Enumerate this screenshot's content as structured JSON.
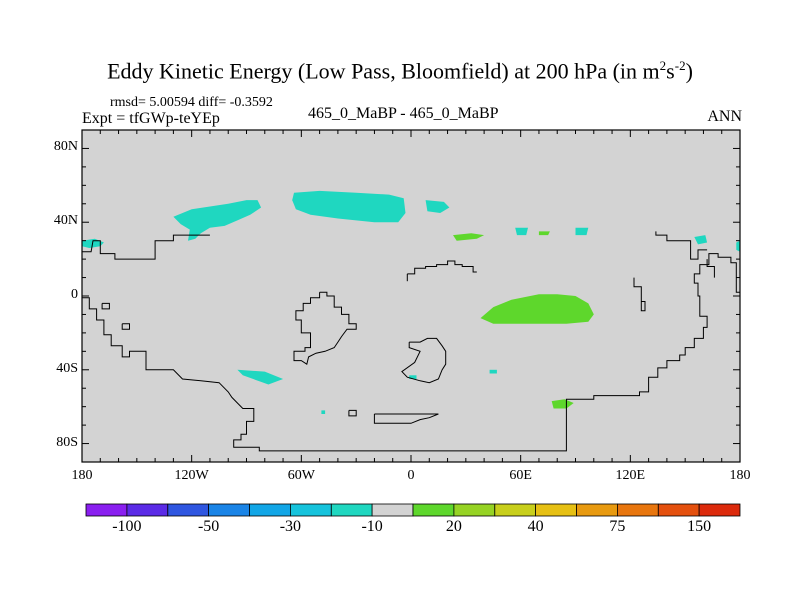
{
  "title_main": "Eddy Kinetic Energy (Low Pass, Bloomfield) at 200 hPa (in m",
  "title_sup1": "2",
  "title_s": "s",
  "title_sup2": "-2",
  "title_end": ")",
  "stats": "rmsd= 5.00594  diff= -0.3592",
  "expt": "Expt = tfGWp-teYEp",
  "cases": "465_0_MaBP - 465_0_MaBP",
  "season": "ANN",
  "chart_data": {
    "type": "heatmap",
    "title": "Eddy Kinetic Energy (Low Pass, Bloomfield) at 200 hPa (in m2s-2)",
    "x_ticks": [
      {
        "v": -180,
        "label": "180"
      },
      {
        "v": -120,
        "label": "120W"
      },
      {
        "v": -60,
        "label": "60W"
      },
      {
        "v": 0,
        "label": "0"
      },
      {
        "v": 60,
        "label": "60E"
      },
      {
        "v": 120,
        "label": "120E"
      },
      {
        "v": 180,
        "label": "180"
      }
    ],
    "y_ticks": [
      {
        "v": 80,
        "label": "80N"
      },
      {
        "v": 40,
        "label": "40N"
      },
      {
        "v": 0,
        "label": "0"
      },
      {
        "v": -40,
        "label": "40S"
      },
      {
        "v": -80,
        "label": "80S"
      }
    ],
    "xlim": [
      -180,
      180
    ],
    "ylim": [
      -90,
      90
    ],
    "background_color": "#d3d3d3",
    "colorbar": {
      "colors": [
        "#8a1ff0",
        "#5b2be6",
        "#2f56e0",
        "#1a84e6",
        "#12a6e6",
        "#16c3dc",
        "#1fd7c0",
        "#d3d3d3",
        "#5ed72c",
        "#96d324",
        "#c8cf1c",
        "#e6c014",
        "#e89a10",
        "#e8760e",
        "#e4500e",
        "#dc2a0c"
      ],
      "labels": [
        {
          "after": 1,
          "text": "-100"
        },
        {
          "after": 3,
          "text": "-50"
        },
        {
          "after": 5,
          "text": "-30"
        },
        {
          "after": 7,
          "text": "-10"
        },
        {
          "after": 9,
          "text": "20"
        },
        {
          "after": 11,
          "text": "40"
        },
        {
          "after": 13,
          "text": "75"
        },
        {
          "after": 15,
          "text": "150"
        }
      ]
    },
    "regions": [
      {
        "name": "n-pacific-negative",
        "color": "#1fd7c0",
        "pts": [
          [
            -130,
            43
          ],
          [
            -120,
            47
          ],
          [
            -100,
            50
          ],
          [
            -90,
            52
          ],
          [
            -84,
            52
          ],
          [
            -82,
            48
          ],
          [
            -88,
            44
          ],
          [
            -95,
            41
          ],
          [
            -102,
            38
          ],
          [
            -110,
            37
          ],
          [
            -115,
            34
          ],
          [
            -118,
            31
          ],
          [
            -122,
            30
          ],
          [
            -121,
            36
          ],
          [
            -126,
            39
          ]
        ]
      },
      {
        "name": "n-atlantic-negative",
        "color": "#1fd7c0",
        "pts": [
          [
            -64,
            56
          ],
          [
            -50,
            57
          ],
          [
            -30,
            56
          ],
          [
            -12,
            55
          ],
          [
            -4,
            53
          ],
          [
            -3,
            45
          ],
          [
            -7,
            40
          ],
          [
            -20,
            40
          ],
          [
            -40,
            42
          ],
          [
            -55,
            44
          ],
          [
            -63,
            47
          ],
          [
            -65,
            52
          ]
        ]
      },
      {
        "name": "w-pacific-patch",
        "color": "#1fd7c0",
        "pts": [
          [
            -180,
            30
          ],
          [
            -173,
            31
          ],
          [
            -168,
            29
          ],
          [
            -170,
            27
          ],
          [
            -176,
            26
          ],
          [
            -180,
            27
          ]
        ]
      },
      {
        "name": "europe-patch",
        "color": "#1fd7c0",
        "pts": [
          [
            8,
            52
          ],
          [
            18,
            51
          ],
          [
            21,
            48
          ],
          [
            16,
            45
          ],
          [
            9,
            46
          ]
        ]
      },
      {
        "name": "asia-patch",
        "color": "#1fd7c0",
        "pts": [
          [
            57,
            37
          ],
          [
            64,
            37
          ],
          [
            63,
            33
          ],
          [
            58,
            33
          ]
        ]
      },
      {
        "name": "asia-patch-2",
        "color": "#1fd7c0",
        "pts": [
          [
            90,
            37
          ],
          [
            97,
            37
          ],
          [
            96,
            33
          ],
          [
            90,
            33
          ]
        ]
      },
      {
        "name": "w-pacific-edge",
        "color": "#1fd7c0",
        "pts": [
          [
            155,
            32
          ],
          [
            161,
            33
          ],
          [
            162,
            29
          ],
          [
            157,
            28
          ]
        ]
      },
      {
        "name": "dateline-edge",
        "color": "#1fd7c0",
        "pts": [
          [
            178,
            29
          ],
          [
            180,
            30
          ],
          [
            180,
            24
          ],
          [
            178,
            25
          ]
        ]
      },
      {
        "name": "s-atlantic-patch",
        "color": "#1fd7c0",
        "pts": [
          [
            -95,
            -40
          ],
          [
            -80,
            -41
          ],
          [
            -70,
            -45
          ],
          [
            -78,
            -48
          ],
          [
            -92,
            -43
          ]
        ]
      },
      {
        "name": "tiny-patch-a",
        "color": "#1fd7c0",
        "pts": [
          [
            -1,
            -43
          ],
          [
            3,
            -43
          ],
          [
            3,
            -45
          ],
          [
            -1,
            -45
          ]
        ]
      },
      {
        "name": "tiny-patch-b",
        "color": "#1fd7c0",
        "pts": [
          [
            -49,
            -62
          ],
          [
            -47,
            -62
          ],
          [
            -47,
            -64
          ],
          [
            -49,
            -64
          ]
        ]
      },
      {
        "name": "tiny-patch-c",
        "color": "#1fd7c0",
        "pts": [
          [
            43,
            -40
          ],
          [
            47,
            -40
          ],
          [
            47,
            -42
          ],
          [
            43,
            -42
          ]
        ]
      },
      {
        "name": "indian-positive",
        "color": "#5ed72c",
        "pts": [
          [
            38,
            -12
          ],
          [
            45,
            -6
          ],
          [
            55,
            -2
          ],
          [
            70,
            1
          ],
          [
            80,
            1
          ],
          [
            90,
            0
          ],
          [
            97,
            -4
          ],
          [
            100,
            -10
          ],
          [
            97,
            -14
          ],
          [
            85,
            -15
          ],
          [
            70,
            -15
          ],
          [
            55,
            -15
          ],
          [
            45,
            -15
          ]
        ]
      },
      {
        "name": "s-ocean-positive",
        "color": "#5ed72c",
        "pts": [
          [
            77,
            -57
          ],
          [
            84,
            -56
          ],
          [
            89,
            -58
          ],
          [
            85,
            -61
          ],
          [
            78,
            -61
          ]
        ]
      },
      {
        "name": "mideast-positive",
        "color": "#5ed72c",
        "pts": [
          [
            23,
            33
          ],
          [
            33,
            34
          ],
          [
            40,
            33
          ],
          [
            36,
            31
          ],
          [
            25,
            30
          ]
        ]
      },
      {
        "name": "china-positive",
        "color": "#5ed72c",
        "pts": [
          [
            70,
            35
          ],
          [
            76,
            35
          ],
          [
            75,
            33
          ],
          [
            70,
            33
          ]
        ]
      }
    ],
    "coastlines": [
      [
        [
          -180,
          24
        ],
        [
          -175,
          24
        ],
        [
          -174,
          30
        ],
        [
          -170,
          30
        ],
        [
          -170,
          23
        ],
        [
          -162,
          23
        ],
        [
          -162,
          20
        ],
        [
          -140,
          20
        ],
        [
          -140,
          30
        ],
        [
          -130,
          30
        ],
        [
          -130,
          33
        ],
        [
          -110,
          33
        ]
      ],
      [
        [
          -180,
          -1
        ],
        [
          -176,
          -1
        ],
        [
          -176,
          -7
        ],
        [
          -172,
          -7
        ],
        [
          -172,
          -13
        ],
        [
          -168,
          -13
        ],
        [
          -168,
          -21
        ],
        [
          -164,
          -21
        ],
        [
          -164,
          -27
        ],
        [
          -158,
          -27
        ],
        [
          -158,
          -33
        ],
        [
          -154,
          -33
        ],
        [
          -154,
          -30
        ],
        [
          -145,
          -30
        ],
        [
          -145,
          -40
        ],
        [
          -130,
          -40
        ],
        [
          -125,
          -45
        ],
        [
          -115,
          -46
        ],
        [
          -105,
          -47
        ],
        [
          -100,
          -52
        ],
        [
          -98,
          -55
        ],
        [
          -95,
          -58
        ],
        [
          -92,
          -61
        ],
        [
          -86,
          -61
        ],
        [
          -86,
          -68
        ],
        [
          -90,
          -68
        ],
        [
          -90,
          -75
        ],
        [
          -93,
          -75
        ],
        [
          -93,
          -78
        ],
        [
          -97,
          -78
        ],
        [
          -97,
          -82
        ],
        [
          -83,
          -82
        ],
        [
          -83,
          -84
        ],
        [
          -10,
          -84
        ],
        [
          10,
          -84
        ],
        [
          85,
          -84
        ],
        [
          85,
          -56
        ],
        [
          100,
          -56
        ],
        [
          100,
          -54
        ],
        [
          125,
          -54
        ],
        [
          125,
          -52
        ],
        [
          130,
          -52
        ],
        [
          130,
          -44
        ],
        [
          135,
          -44
        ],
        [
          135,
          -39
        ],
        [
          140,
          -39
        ],
        [
          140,
          -35
        ],
        [
          147,
          -35
        ],
        [
          147,
          -32
        ],
        [
          150,
          -32
        ],
        [
          150,
          -28
        ],
        [
          155,
          -28
        ],
        [
          155,
          -23
        ],
        [
          160,
          -23
        ],
        [
          160,
          -17
        ],
        [
          162,
          -17
        ],
        [
          162,
          -11
        ],
        [
          158,
          -11
        ],
        [
          158,
          0
        ],
        [
          157,
          0
        ],
        [
          157,
          7
        ],
        [
          155,
          7
        ],
        [
          155,
          12
        ],
        [
          158,
          12
        ],
        [
          158,
          17
        ],
        [
          163,
          17
        ],
        [
          163,
          23
        ],
        [
          168,
          23
        ],
        [
          168,
          21
        ],
        [
          175,
          21
        ],
        [
          175,
          18
        ],
        [
          178,
          18
        ],
        [
          178,
          2
        ],
        [
          180,
          2
        ]
      ],
      [
        [
          -169,
          -4
        ],
        [
          -165,
          -4
        ],
        [
          -165,
          -7
        ],
        [
          -169,
          -7
        ],
        [
          -169,
          -4
        ]
      ],
      [
        [
          -158,
          -15
        ],
        [
          -154,
          -15
        ],
        [
          -154,
          -18
        ],
        [
          -158,
          -18
        ],
        [
          -158,
          -15
        ]
      ],
      [
        [
          -50,
          2
        ],
        [
          -46,
          2
        ],
        [
          -46,
          0
        ],
        [
          -42,
          0
        ],
        [
          -42,
          -6
        ],
        [
          -38,
          -6
        ],
        [
          -38,
          -10
        ],
        [
          -34,
          -10
        ],
        [
          -34,
          -15
        ],
        [
          -30,
          -15
        ],
        [
          -30,
          -18
        ],
        [
          -35,
          -18
        ],
        [
          -38,
          -22
        ],
        [
          -40,
          -25
        ],
        [
          -42,
          -28
        ],
        [
          -47,
          -30
        ],
        [
          -52,
          -31
        ],
        [
          -56,
          -33
        ],
        [
          -57,
          -37
        ],
        [
          -60,
          -35
        ],
        [
          -64,
          -35
        ],
        [
          -64,
          -30
        ],
        [
          -58,
          -30
        ],
        [
          -58,
          -28
        ],
        [
          -55,
          -28
        ],
        [
          -55,
          -20
        ],
        [
          -60,
          -20
        ],
        [
          -60,
          -13
        ],
        [
          -63,
          -13
        ],
        [
          -63,
          -8
        ],
        [
          -59,
          -8
        ],
        [
          -59,
          -4
        ],
        [
          -55,
          -4
        ],
        [
          -55,
          -1
        ],
        [
          -50,
          -1
        ],
        [
          -50,
          2
        ]
      ],
      [
        [
          -34,
          -62
        ],
        [
          -30,
          -62
        ],
        [
          -30,
          -65
        ],
        [
          -34,
          -65
        ],
        [
          -34,
          -62
        ]
      ],
      [
        [
          -20,
          -64
        ],
        [
          -20,
          -69
        ],
        [
          0,
          -69
        ],
        [
          5,
          -67
        ],
        [
          10,
          -66
        ],
        [
          15,
          -64
        ],
        [
          -20,
          -64
        ]
      ],
      [
        [
          -1,
          -25
        ],
        [
          5,
          -25
        ],
        [
          9,
          -23
        ],
        [
          14,
          -23
        ],
        [
          17,
          -27
        ],
        [
          19,
          -30
        ],
        [
          19,
          -37
        ],
        [
          17,
          -40
        ],
        [
          15,
          -45
        ],
        [
          10,
          -47
        ],
        [
          5,
          -46
        ],
        [
          -2,
          -44
        ],
        [
          -5,
          -41
        ],
        [
          2,
          -36
        ],
        [
          5,
          -30
        ],
        [
          -1,
          -28
        ],
        [
          -1,
          -25
        ]
      ],
      [
        [
          -2,
          12
        ],
        [
          2,
          12
        ],
        [
          2,
          15
        ],
        [
          8,
          15
        ],
        [
          8,
          16
        ],
        [
          14,
          16
        ],
        [
          14,
          17
        ],
        [
          20,
          17
        ],
        [
          20,
          19
        ],
        [
          24,
          19
        ],
        [
          24,
          17
        ],
        [
          28,
          17
        ],
        [
          28,
          16
        ],
        [
          34,
          16
        ],
        [
          34,
          13
        ],
        [
          36,
          13
        ]
      ],
      [
        [
          -2,
          12
        ],
        [
          -2,
          9
        ],
        [
          -2,
          8
        ]
      ],
      [
        [
          134,
          35
        ],
        [
          134,
          33
        ],
        [
          140,
          33
        ],
        [
          140,
          30
        ],
        [
          153,
          30
        ],
        [
          153,
          20
        ],
        [
          157,
          20
        ],
        [
          157,
          25
        ],
        [
          162,
          25
        ]
      ],
      [
        [
          122,
          10
        ],
        [
          122,
          5
        ],
        [
          126,
          5
        ],
        [
          126,
          -3
        ],
        [
          128,
          -3
        ],
        [
          128,
          -8
        ],
        [
          126,
          -8
        ],
        [
          126,
          -3
        ]
      ],
      [
        [
          162,
          20
        ],
        [
          162,
          16
        ],
        [
          166,
          16
        ],
        [
          166,
          10
        ]
      ]
    ]
  }
}
